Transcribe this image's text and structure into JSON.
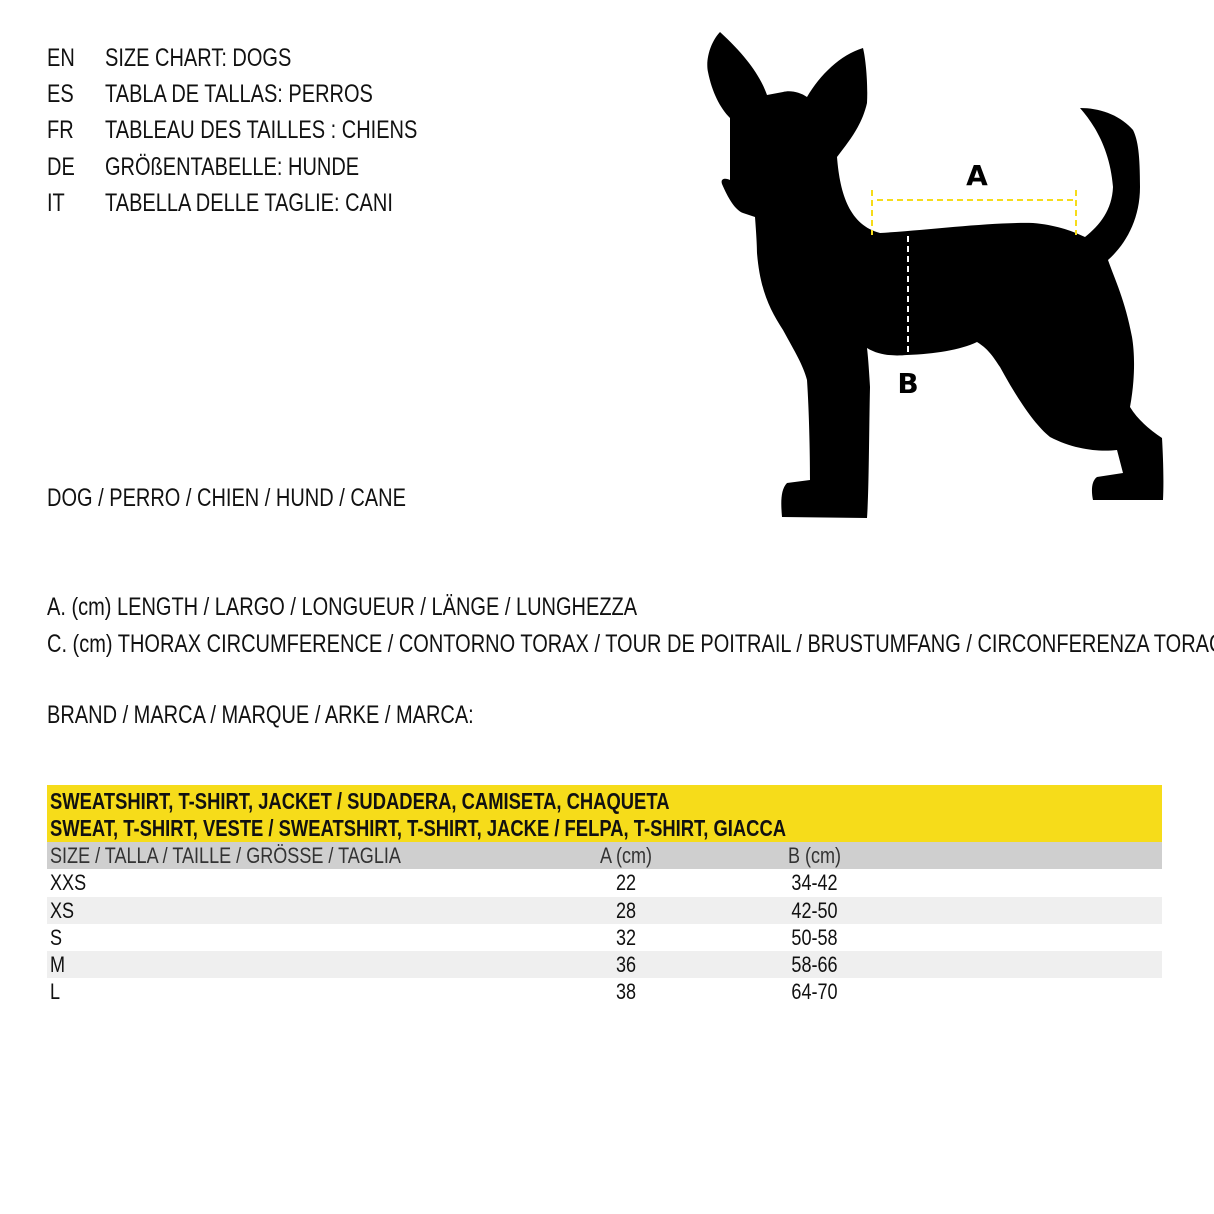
{
  "titles": [
    {
      "lang": "EN",
      "text": "SIZE CHART: DOGS"
    },
    {
      "lang": "ES",
      "text": "TABLA DE TALLAS: PERROS"
    },
    {
      "lang": "FR",
      "text": "TABLEAU DES TAILLES : CHIENS"
    },
    {
      "lang": "DE",
      "text": "GRÖßENTABELLE: HUNDE"
    },
    {
      "lang": "IT",
      "text": "TABELLA DELLE TAGLIE: CANI"
    }
  ],
  "animal": "DOG / PERRO / CHIEN / HUND / CANE",
  "legend": {
    "a": "A. (cm) LENGTH / LARGO / LONGUEUR / LÄNGE / LUNGHEZZA",
    "c": "C. (cm) THORAX CIRCUMFERENCE / CONTORNO TORAX / TOUR DE POITRAIL / BRUSTUMFANG / CIRCONFERENZA TORACE"
  },
  "brand": "BRAND / MARCA / MARQUE / ARKE / MARCA:",
  "diagram": {
    "label_a": "A",
    "label_b": "B",
    "dash_color": "#f6dc1a"
  },
  "table": {
    "title_line1": "SWEATSHIRT, T-SHIRT, JACKET / SUDADERA, CAMISETA, CHAQUETA",
    "title_line2": "SWEAT, T-SHIRT, VESTE / SWEATSHIRT, T-SHIRT, JACKE / FELPA, T-SHIRT, GIACCA",
    "headers": [
      "SIZE / TALLA / TAILLE / GRÖSSE / TAGLIA",
      "A (cm)",
      "B (cm)"
    ],
    "rows": [
      [
        "XXS",
        "22",
        "34-42"
      ],
      [
        "XS",
        "28",
        "42-50"
      ],
      [
        "S",
        "32",
        "50-58"
      ],
      [
        "M",
        "36",
        "58-66"
      ],
      [
        "L",
        "38",
        "64-70"
      ]
    ],
    "accent": "#f6dc1a"
  }
}
